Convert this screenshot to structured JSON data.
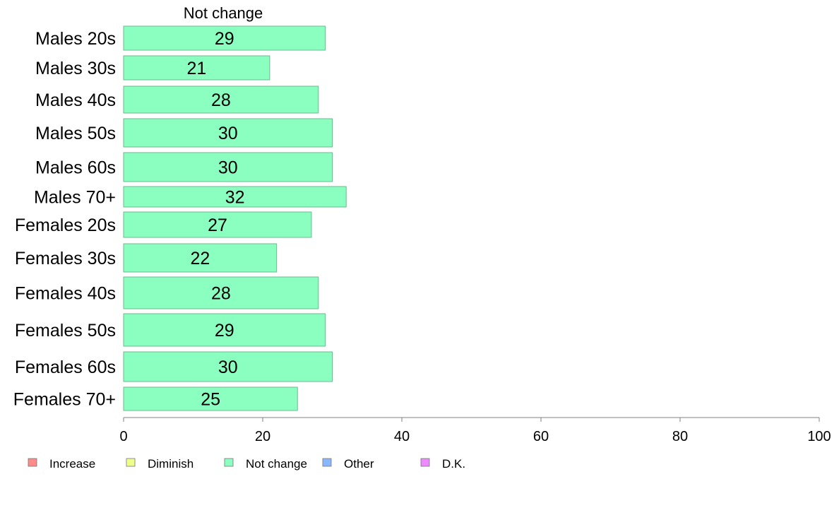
{
  "chart_data": {
    "type": "bar",
    "orientation": "horizontal",
    "title": "",
    "panel_title": "Not change",
    "categories": [
      "Males 20s",
      "Males 30s",
      "Males 40s",
      "Males 50s",
      "Males 60s",
      "Males 70+",
      "Females 20s",
      "Females 30s",
      "Females 40s",
      "Females 50s",
      "Females 60s",
      "Females 70+"
    ],
    "series": [
      {
        "name": "Not change",
        "color": "#8affbf",
        "values": [
          29,
          21,
          28,
          30,
          30,
          32,
          27,
          22,
          28,
          29,
          30,
          25
        ]
      }
    ],
    "xlim": [
      0,
      100
    ],
    "xticks": [
      0,
      20,
      40,
      60,
      80,
      100
    ],
    "xlabel": "",
    "ylabel": "",
    "grid": false,
    "legend": {
      "placement": "bottom-left",
      "entries": [
        {
          "label": "Increase",
          "color": "#ff8a8a"
        },
        {
          "label": "Diminish",
          "color": "#eeff8a"
        },
        {
          "label": "Not change",
          "color": "#8affbf"
        },
        {
          "label": "Other",
          "color": "#8ab8ff"
        },
        {
          "label": "D.K.",
          "color": "#ee8aff"
        }
      ]
    }
  }
}
